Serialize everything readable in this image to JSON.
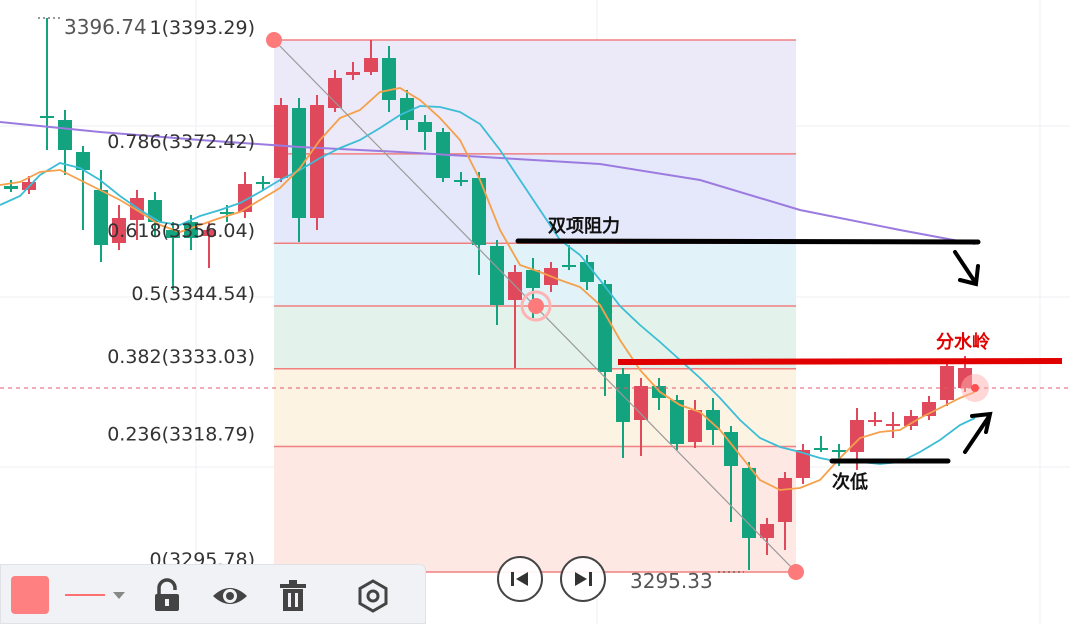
{
  "price_markers": {
    "high": "3396.74",
    "low": "3295.33"
  },
  "fib_levels": [
    {
      "label": "1(3393.29)",
      "price": 3393.29
    },
    {
      "label": "0.786(3372.42)",
      "price": 3372.42
    },
    {
      "label": "0.618(3356.04)",
      "price": 3356.04
    },
    {
      "label": "0.5(3344.54)",
      "price": 3344.54
    },
    {
      "label": "0.382(3333.03)",
      "price": 3333.03
    },
    {
      "label": "0.236(3318.79)",
      "price": 3318.79
    },
    {
      "label": "0(3295.78)",
      "price": 3295.78
    }
  ],
  "annotations": {
    "double_top": "双项阻力",
    "watershed": "分水岭",
    "second_low": "次低"
  },
  "colors": {
    "up": "#e0485c",
    "down": "#14a37f",
    "fib_line": "#f08080",
    "ma_fast": "#f5a04a",
    "ma_slow": "#3bbdd6",
    "ma_long": "#9b7be0",
    "annot_red": "#e00000",
    "annot_black": "#000000"
  },
  "toolbar": {
    "color_swatch": "color-swatch",
    "line_style_icon": "line-style-icon",
    "lock_icon": "lock-open-icon",
    "visibility_icon": "eye-icon",
    "delete_icon": "trash-icon",
    "settings_icon": "hexagon-settings-icon"
  },
  "navigation": {
    "prev_icon": "skip-back-icon",
    "next_icon": "skip-forward-icon"
  }
}
